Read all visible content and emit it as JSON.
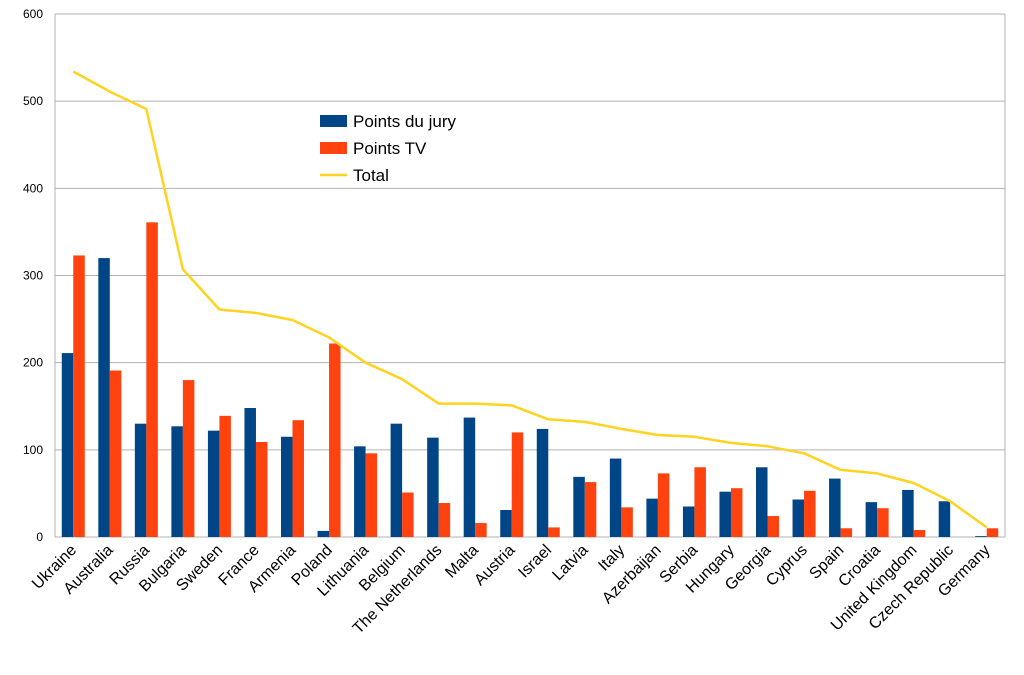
{
  "chart_data": {
    "type": "bar",
    "categories": [
      "Ukraine",
      "Australia",
      "Russia",
      "Bulgaria",
      "Sweden",
      "France",
      "Armenia",
      "Poland",
      "Lithuania",
      "Belgium",
      "The Netherlands",
      "Malta",
      "Austria",
      "Israel",
      "Latvia",
      "Italy",
      "Azerbaijan",
      "Serbia",
      "Hungary",
      "Georgia",
      "Cyprus",
      "Spain",
      "Croatia",
      "United Kingdom",
      "Czech Republic",
      "Germany"
    ],
    "series": [
      {
        "name": "Points du jury",
        "kind": "bar",
        "color": "#004586",
        "values": [
          211,
          320,
          130,
          127,
          122,
          148,
          115,
          7,
          104,
          130,
          114,
          137,
          31,
          124,
          69,
          90,
          44,
          35,
          52,
          80,
          43,
          67,
          40,
          54,
          41,
          1
        ]
      },
      {
        "name": "Points TV",
        "kind": "bar",
        "color": "#ff420e",
        "values": [
          323,
          191,
          361,
          180,
          139,
          109,
          134,
          222,
          96,
          51,
          39,
          16,
          120,
          11,
          63,
          34,
          73,
          80,
          56,
          24,
          53,
          10,
          33,
          8,
          0,
          10
        ]
      },
      {
        "name": "Total",
        "kind": "line",
        "color": "#ffd320",
        "values": [
          534,
          511,
          491,
          307,
          261,
          257,
          249,
          229,
          200,
          181,
          153,
          153,
          151,
          135,
          132,
          124,
          117,
          115,
          108,
          104,
          96,
          77,
          73,
          62,
          41,
          11
        ]
      }
    ],
    "ylim": [
      0,
      600
    ],
    "yticks": [
      0,
      100,
      200,
      300,
      400,
      500,
      600
    ],
    "grid": true,
    "legend_position": "top-center",
    "title": "",
    "xlabel": "",
    "ylabel": ""
  }
}
